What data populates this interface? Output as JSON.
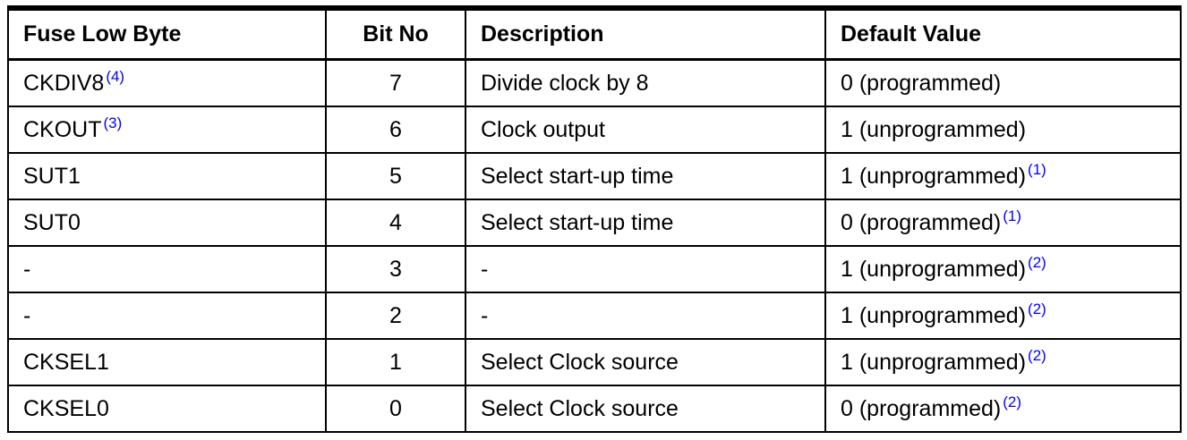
{
  "table": {
    "headers": [
      "Fuse Low Byte",
      "Bit No",
      "Description",
      "Default Value"
    ],
    "rows": [
      {
        "name": "CKDIV8",
        "name_note": "(4)",
        "bit": "7",
        "description": "Divide clock by 8",
        "default": "0 (programmed)",
        "default_note": ""
      },
      {
        "name": "CKOUT",
        "name_note": "(3)",
        "bit": "6",
        "description": "Clock output",
        "default": "1 (unprogrammed)",
        "default_note": ""
      },
      {
        "name": "SUT1",
        "name_note": "",
        "bit": "5",
        "description": "Select start-up time",
        "default": "1 (unprogrammed)",
        "default_note": "(1)"
      },
      {
        "name": "SUT0",
        "name_note": "",
        "bit": "4",
        "description": "Select start-up time",
        "default": "0 (programmed)",
        "default_note": "(1)"
      },
      {
        "name": "-",
        "name_note": "",
        "bit": "3",
        "description": "-",
        "default": "1 (unprogrammed)",
        "default_note": "(2)"
      },
      {
        "name": "-",
        "name_note": "",
        "bit": "2",
        "description": "-",
        "default": "1 (unprogrammed)",
        "default_note": "(2)"
      },
      {
        "name": "CKSEL1",
        "name_note": "",
        "bit": "1",
        "description": "Select Clock source",
        "default": "1 (unprogrammed)",
        "default_note": "(2)"
      },
      {
        "name": "CKSEL0",
        "name_note": "",
        "bit": "0",
        "description": "Select Clock source",
        "default": "0 (programmed)",
        "default_note": "(2)"
      }
    ]
  },
  "colors": {
    "footnote_link": "#0000ff",
    "border": "#000000",
    "text": "#000000"
  }
}
